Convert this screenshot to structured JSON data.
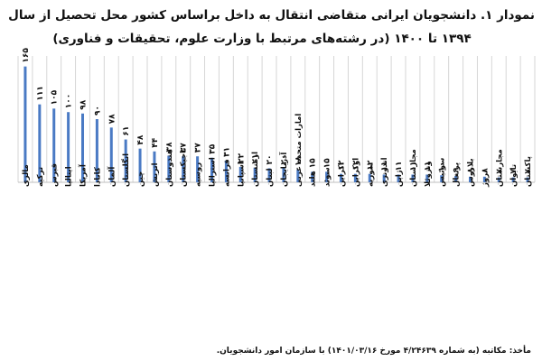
{
  "title": {
    "line1": "نمودار ۱. دانشجویان ایرانی متقاضی انتقال به داخل براساس کشور محل تحصیل از سال",
    "line2": "۱۳۹۴ تا ۱۴۰۰ (در رشته‌های مرتبط با وزارت علوم، تحقیقات و فناوری)"
  },
  "source": "مأخذ: مکاتبه (به شماره ۴/۲۴۶۳۹ مورخ ۱۴۰۱/۰۳/۱۶) با سازمان امور دانشجویان.",
  "chart_data": {
    "type": "bar",
    "categories": [
      "مالزی",
      "ترکیه",
      "قبرس",
      "ایتالیا",
      "آمریکا",
      "کانادا",
      "آلمان",
      "انگلستان",
      "چین",
      "اتریش",
      "هندوستان",
      "تاجیکستان",
      "روسیه",
      "استرالیا",
      "فرانسه",
      "اسپانیا",
      "ارمنستان",
      "لبنان",
      "آذربایجان",
      "امارات متحده عربی",
      "هلند",
      "سوئد",
      "اکراین",
      "اوکراین",
      "سوریه",
      "اندونزی",
      "ژاپن",
      "مجارستان",
      "ونزوئلا",
      "سوئیس",
      "پرتغال",
      "بلاروس",
      "نروژ",
      "مجارستان",
      "تایوان",
      "پاکستان"
    ],
    "values": [
      165,
      111,
      105,
      100,
      98,
      90,
      78,
      61,
      48,
      44,
      38,
      37,
      37,
      35,
      31,
      22,
      21,
      20,
      20,
      18,
      15,
      15,
      12,
      12,
      12,
      11,
      11,
      11,
      11,
      10,
      9,
      8,
      8,
      7,
      7,
      7
    ],
    "value_labels": [
      "۱۶۵",
      "۱۱۱",
      "۱۰۵",
      "۱۰۰",
      "۹۸",
      "۹۰",
      "۷۸",
      "۶۱",
      "۴۸",
      "۴۴",
      "۳۸",
      "۳۷",
      "۳۷",
      "۳۵",
      "۳۱",
      "۲۲",
      "۲۱",
      "۲۰",
      "۲۰",
      "۱۸",
      "۱۵",
      "۱۵",
      "۱۲",
      "۱۲",
      "۱۲",
      "۱۱",
      "۱۱",
      "۱۱",
      "۱۱",
      "۱۰",
      "۹",
      "۸",
      "۸",
      "۷",
      "۷",
      "۷"
    ],
    "ylim": [
      0,
      180
    ],
    "grid": "vertical",
    "legend": "none",
    "bar_color": "#4a7ac4",
    "grid_color": "#d6d6d6"
  }
}
